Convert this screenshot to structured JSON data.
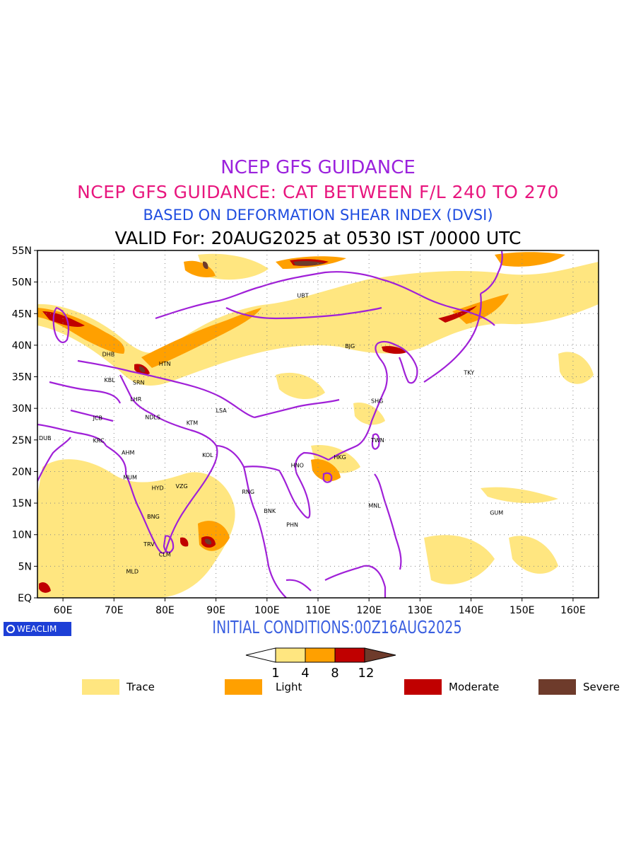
{
  "titles": {
    "line1": "NCEP GFS GUIDANCE",
    "line2": "NCEP GFS GUIDANCE: CAT BETWEEN F/L 240 TO 270",
    "line3": "BASED ON DEFORMATION SHEAR INDEX (DVSI)",
    "line4": "VALID For: 20AUG2025 at 0530 IST /0000 UTC"
  },
  "colors": {
    "line1": "#9b22dd",
    "line2": "#e8167e",
    "line3": "#1f4de0",
    "line4": "#000000",
    "initial": "#3a5fe0",
    "trace": "#ffe680",
    "light": "#ffa000",
    "moderate": "#c00000",
    "severe": "#6e3b2b",
    "coast": "#a020d8",
    "grid": "#888888"
  },
  "initial_conditions": "INITIAL CONDITIONS:00Z16AUG2025",
  "logo_text": "WEACLIM",
  "map": {
    "lon_range": [
      55,
      165
    ],
    "lat_range": [
      0,
      55
    ],
    "lon_ticks": [
      "60E",
      "70E",
      "80E",
      "90E",
      "100E",
      "110E",
      "120E",
      "130E",
      "140E",
      "150E",
      "160E"
    ],
    "lat_ticks": [
      "EQ",
      "5N",
      "10N",
      "15N",
      "20N",
      "25N",
      "30N",
      "35N",
      "40N",
      "45N",
      "50N",
      "55N"
    ],
    "stations": [
      {
        "name": "UBT",
        "lon": 107,
        "lat": 47.9
      },
      {
        "name": "BJG",
        "lon": 116.4,
        "lat": 39.9
      },
      {
        "name": "TKY",
        "lon": 139.7,
        "lat": 35.7
      },
      {
        "name": "SHG",
        "lon": 121.5,
        "lat": 31.2
      },
      {
        "name": "TWN",
        "lon": 121.5,
        "lat": 25
      },
      {
        "name": "HKG",
        "lon": 114.2,
        "lat": 22.3
      },
      {
        "name": "HNO",
        "lon": 105.8,
        "lat": 21
      },
      {
        "name": "MNL",
        "lon": 121,
        "lat": 14.6
      },
      {
        "name": "GUM",
        "lon": 144.8,
        "lat": 13.5
      },
      {
        "name": "BNK",
        "lon": 100.5,
        "lat": 13.8
      },
      {
        "name": "PHN",
        "lon": 104.9,
        "lat": 11.6
      },
      {
        "name": "RNG",
        "lon": 96.2,
        "lat": 16.8
      },
      {
        "name": "LSA",
        "lon": 91.1,
        "lat": 29.7
      },
      {
        "name": "KTM",
        "lon": 85.3,
        "lat": 27.7
      },
      {
        "name": "KOL",
        "lon": 88.4,
        "lat": 22.6
      },
      {
        "name": "NDLS",
        "lon": 77.2,
        "lat": 28.6
      },
      {
        "name": "LHR",
        "lon": 74.3,
        "lat": 31.5
      },
      {
        "name": "SRN",
        "lon": 74.8,
        "lat": 34.1
      },
      {
        "name": "HTN",
        "lon": 79.9,
        "lat": 37.1
      },
      {
        "name": "KBL",
        "lon": 69.2,
        "lat": 34.5
      },
      {
        "name": "DHB",
        "lon": 68.8,
        "lat": 38.6
      },
      {
        "name": "JCB",
        "lon": 67,
        "lat": 28.5
      },
      {
        "name": "KRC",
        "lon": 67,
        "lat": 24.9
      },
      {
        "name": "DUB",
        "lon": 55.3,
        "lat": 25.3
      },
      {
        "name": "AHM",
        "lon": 72.6,
        "lat": 23
      },
      {
        "name": "MUM",
        "lon": 72.9,
        "lat": 19.1
      },
      {
        "name": "HYD",
        "lon": 78.5,
        "lat": 17.4
      },
      {
        "name": "VZG",
        "lon": 83.2,
        "lat": 17.7
      },
      {
        "name": "BNG",
        "lon": 77.6,
        "lat": 12.9
      },
      {
        "name": "TRV",
        "lon": 76.9,
        "lat": 8.5
      },
      {
        "name": "CLM",
        "lon": 79.9,
        "lat": 6.9
      },
      {
        "name": "MLD",
        "lon": 73.5,
        "lat": 4.2
      }
    ]
  },
  "colorbar": {
    "ticks": [
      "1",
      "4",
      "8",
      "12"
    ]
  },
  "legend": [
    {
      "label": "Trace",
      "color": "#ffe680"
    },
    {
      "label": "Light",
      "color": "#ffa000"
    },
    {
      "label": "Moderate",
      "color": "#c00000"
    },
    {
      "label": "Severe",
      "color": "#6e3b2b"
    }
  ]
}
